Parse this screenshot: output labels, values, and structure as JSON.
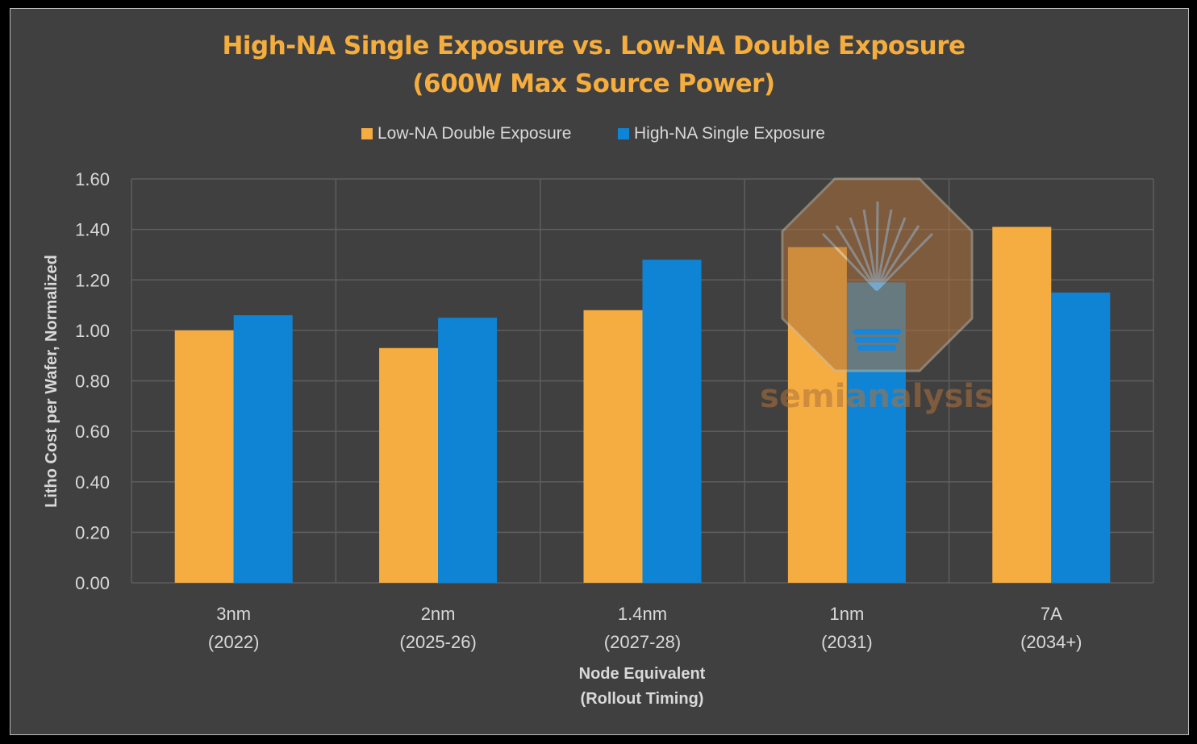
{
  "chart_data": {
    "type": "bar",
    "title": "High-NA Single Exposure vs. Low-NA Double Exposure",
    "subtitle": "(600W Max Source Power)",
    "categories": [
      [
        "3nm",
        "(2022)"
      ],
      [
        "2nm",
        "(2025-26)"
      ],
      [
        "1.4nm",
        "(2027-28)"
      ],
      [
        "1nm",
        "(2031)"
      ],
      [
        "7A",
        "(2034+)"
      ]
    ],
    "series": [
      {
        "name": "Low-NA Double Exposure",
        "color": "#f5ad42",
        "values": [
          1.0,
          0.93,
          1.08,
          1.33,
          1.41
        ]
      },
      {
        "name": "High-NA Single Exposure",
        "color": "#0f84d4",
        "values": [
          1.06,
          1.05,
          1.28,
          1.19,
          1.15
        ]
      }
    ],
    "xlabel": [
      "Node Equivalent",
      "(Rollout Timing)"
    ],
    "ylabel": "Litho Cost per Wafer, Normalized",
    "ylim": [
      0,
      1.6
    ],
    "yticks": [
      "0.00",
      "0.20",
      "0.40",
      "0.60",
      "0.80",
      "1.00",
      "1.20",
      "1.40",
      "1.60"
    ],
    "grid": true,
    "legend_position": "top",
    "watermark": "semianalysis"
  }
}
